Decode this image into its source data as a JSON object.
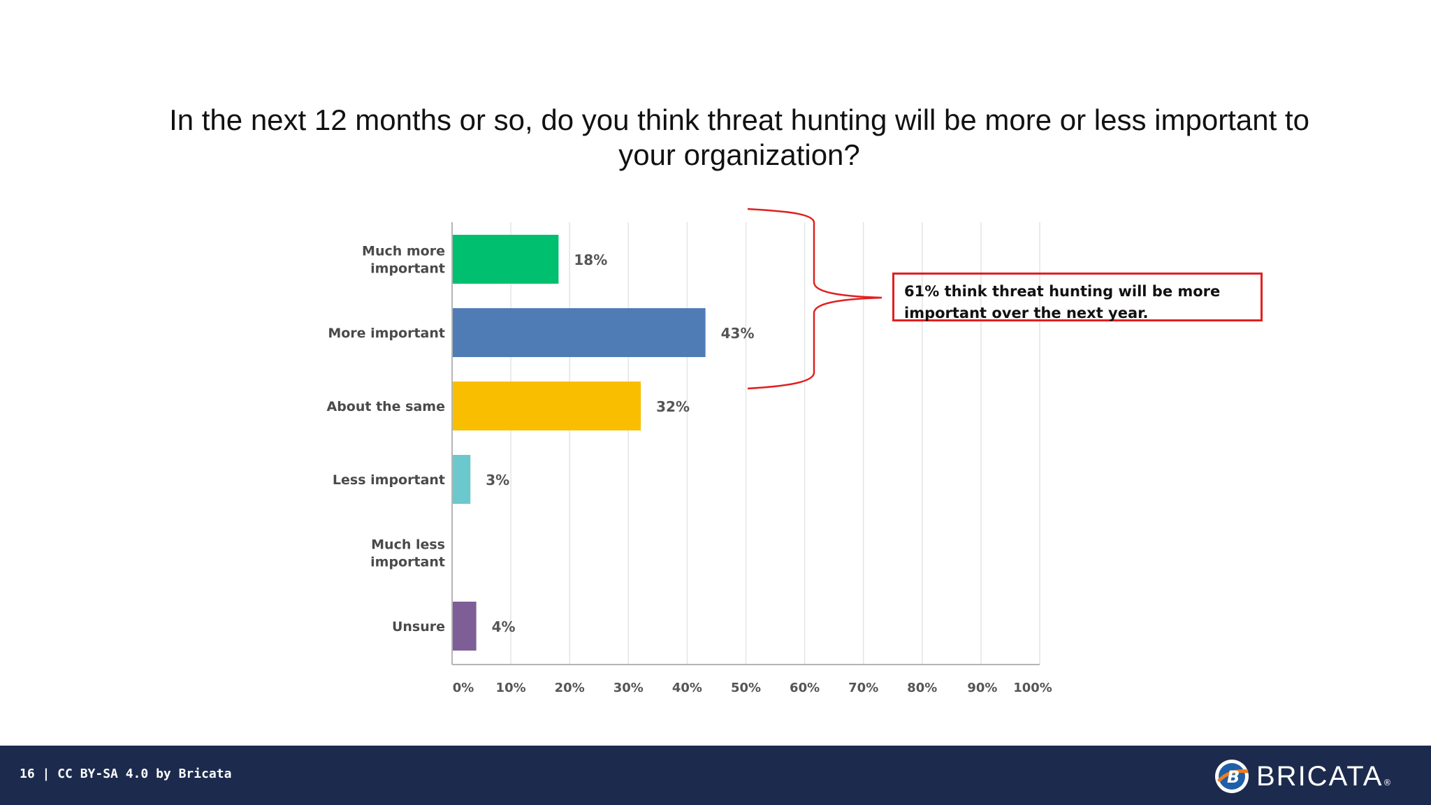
{
  "slide": {
    "title": "In the next 12 months or so, do you think threat hunting will be more or less important to your organization?",
    "callout": "61% think threat hunting will be more important over the next year."
  },
  "footer": {
    "text": "16 | CC BY-SA 4.0 by Bricata",
    "brand": "BRICATA",
    "brand_mark": "®"
  },
  "chart_data": {
    "type": "bar",
    "orientation": "horizontal",
    "categories": [
      [
        "Much more",
        "important"
      ],
      [
        "More important"
      ],
      [
        "About the same"
      ],
      [
        "Less important"
      ],
      [
        "Much less",
        "important"
      ],
      [
        "Unsure"
      ]
    ],
    "values": [
      18,
      43,
      32,
      3,
      0,
      4
    ],
    "value_labels": [
      "18%",
      "43%",
      "32%",
      "3%",
      "",
      "4%"
    ],
    "colors": [
      "#00bf6f",
      "#507cb6",
      "#f9be00",
      "#6bc8cd",
      "#c0c0c0",
      "#7d5e96"
    ],
    "xlim": [
      0,
      100
    ],
    "xticks": [
      "0%",
      "10%",
      "20%",
      "30%",
      "40%",
      "50%",
      "60%",
      "70%",
      "80%",
      "90%",
      "100%"
    ],
    "grid": true,
    "bracket_color": "#e02020"
  }
}
